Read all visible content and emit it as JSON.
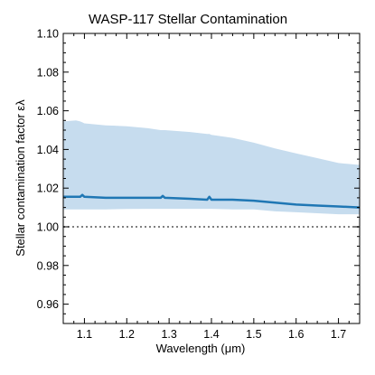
{
  "chart_data": {
    "type": "line",
    "title": "WASP-117 Stellar Contamination",
    "xlabel": "Wavelength (μm)",
    "ylabel": "Stellar contamination factor ελ",
    "xlim": [
      1.05,
      1.75
    ],
    "ylim": [
      0.95,
      1.1
    ],
    "xticks": [
      "1.1",
      "1.2",
      "1.3",
      "1.4",
      "1.5",
      "1.6",
      "1.7"
    ],
    "yticks": [
      "0.96",
      "0.98",
      "1.00",
      "1.02",
      "1.04",
      "1.06",
      "1.08",
      "1.10"
    ],
    "reference_line": 1.0,
    "colors": {
      "line": "#1f77b4",
      "band": "#c6dcee",
      "reference": "#808080"
    },
    "series": [
      {
        "x": [
          1.05,
          1.08,
          1.09,
          1.095,
          1.1,
          1.15,
          1.2,
          1.25,
          1.28,
          1.285,
          1.29,
          1.35,
          1.39,
          1.395,
          1.4,
          1.45,
          1.5,
          1.55,
          1.6,
          1.65,
          1.7,
          1.75
        ],
        "y": [
          1.0155,
          1.0155,
          1.0155,
          1.0165,
          1.0155,
          1.015,
          1.015,
          1.015,
          1.015,
          1.016,
          1.015,
          1.0145,
          1.014,
          1.0155,
          1.014,
          1.014,
          1.0135,
          1.0125,
          1.0115,
          1.011,
          1.0105,
          1.01
        ],
        "lower": [
          1.009,
          1.009,
          1.009,
          1.009,
          1.009,
          1.009,
          1.0092,
          1.0093,
          1.0093,
          1.0093,
          1.0093,
          1.0093,
          1.0093,
          1.0093,
          1.0093,
          1.009,
          1.009,
          1.008,
          1.0075,
          1.007,
          1.0065,
          1.0065
        ],
        "upper": [
          1.0545,
          1.055,
          1.0545,
          1.054,
          1.0535,
          1.0525,
          1.052,
          1.051,
          1.05,
          1.05,
          1.05,
          1.049,
          1.048,
          1.048,
          1.0475,
          1.046,
          1.0435,
          1.0405,
          1.038,
          1.0355,
          1.033,
          1.032
        ]
      }
    ]
  }
}
